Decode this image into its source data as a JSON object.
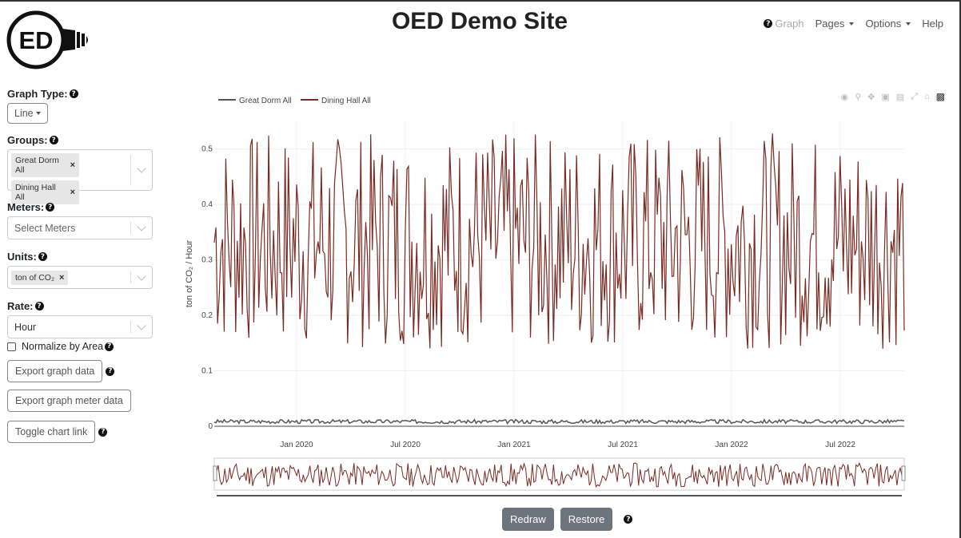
{
  "app": {
    "title": "OED Demo Site",
    "logo_text": "ED"
  },
  "nav": {
    "graph": "Graph",
    "pages": "Pages",
    "options": "Options",
    "help": "Help"
  },
  "sidebar": {
    "graph_type_label": "Graph Type:",
    "graph_type_value": "Line",
    "groups_label": "Groups:",
    "groups": [
      "Great Dorm All",
      "Dining Hall All"
    ],
    "meters_label": "Meters:",
    "meters_placeholder": "Select Meters",
    "units_label": "Units:",
    "units_value": "ton of CO₂",
    "rate_label": "Rate:",
    "rate_value": "Hour",
    "normalize_label": "Normalize by Area",
    "export_graph_data": "Export graph data",
    "export_meter_data": "Export graph meter data",
    "toggle_chart_link": "Toggle chart link"
  },
  "buttons": {
    "redraw": "Redraw",
    "restore": "Restore"
  },
  "chart_data": {
    "type": "line",
    "ylabel": "ton of CO₂ / Hour",
    "ylim": [
      0,
      0.55
    ],
    "yticks": [
      "0",
      "0.1",
      "0.2",
      "0.3",
      "0.4",
      "0.5"
    ],
    "xticks": [
      "Jan 2020",
      "Jul 2020",
      "Jan 2021",
      "Jul 2021",
      "Jan 2022",
      "Jul 2022"
    ],
    "legend_position": "top-left",
    "series": [
      {
        "name": "Great Dorm All",
        "color": "#555555",
        "y_range": [
          0.005,
          0.012
        ]
      },
      {
        "name": "Dining Hall All",
        "color": "#7a2a22",
        "y_range": [
          0.13,
          0.55
        ]
      }
    ],
    "range_slider": true,
    "grid": true
  }
}
